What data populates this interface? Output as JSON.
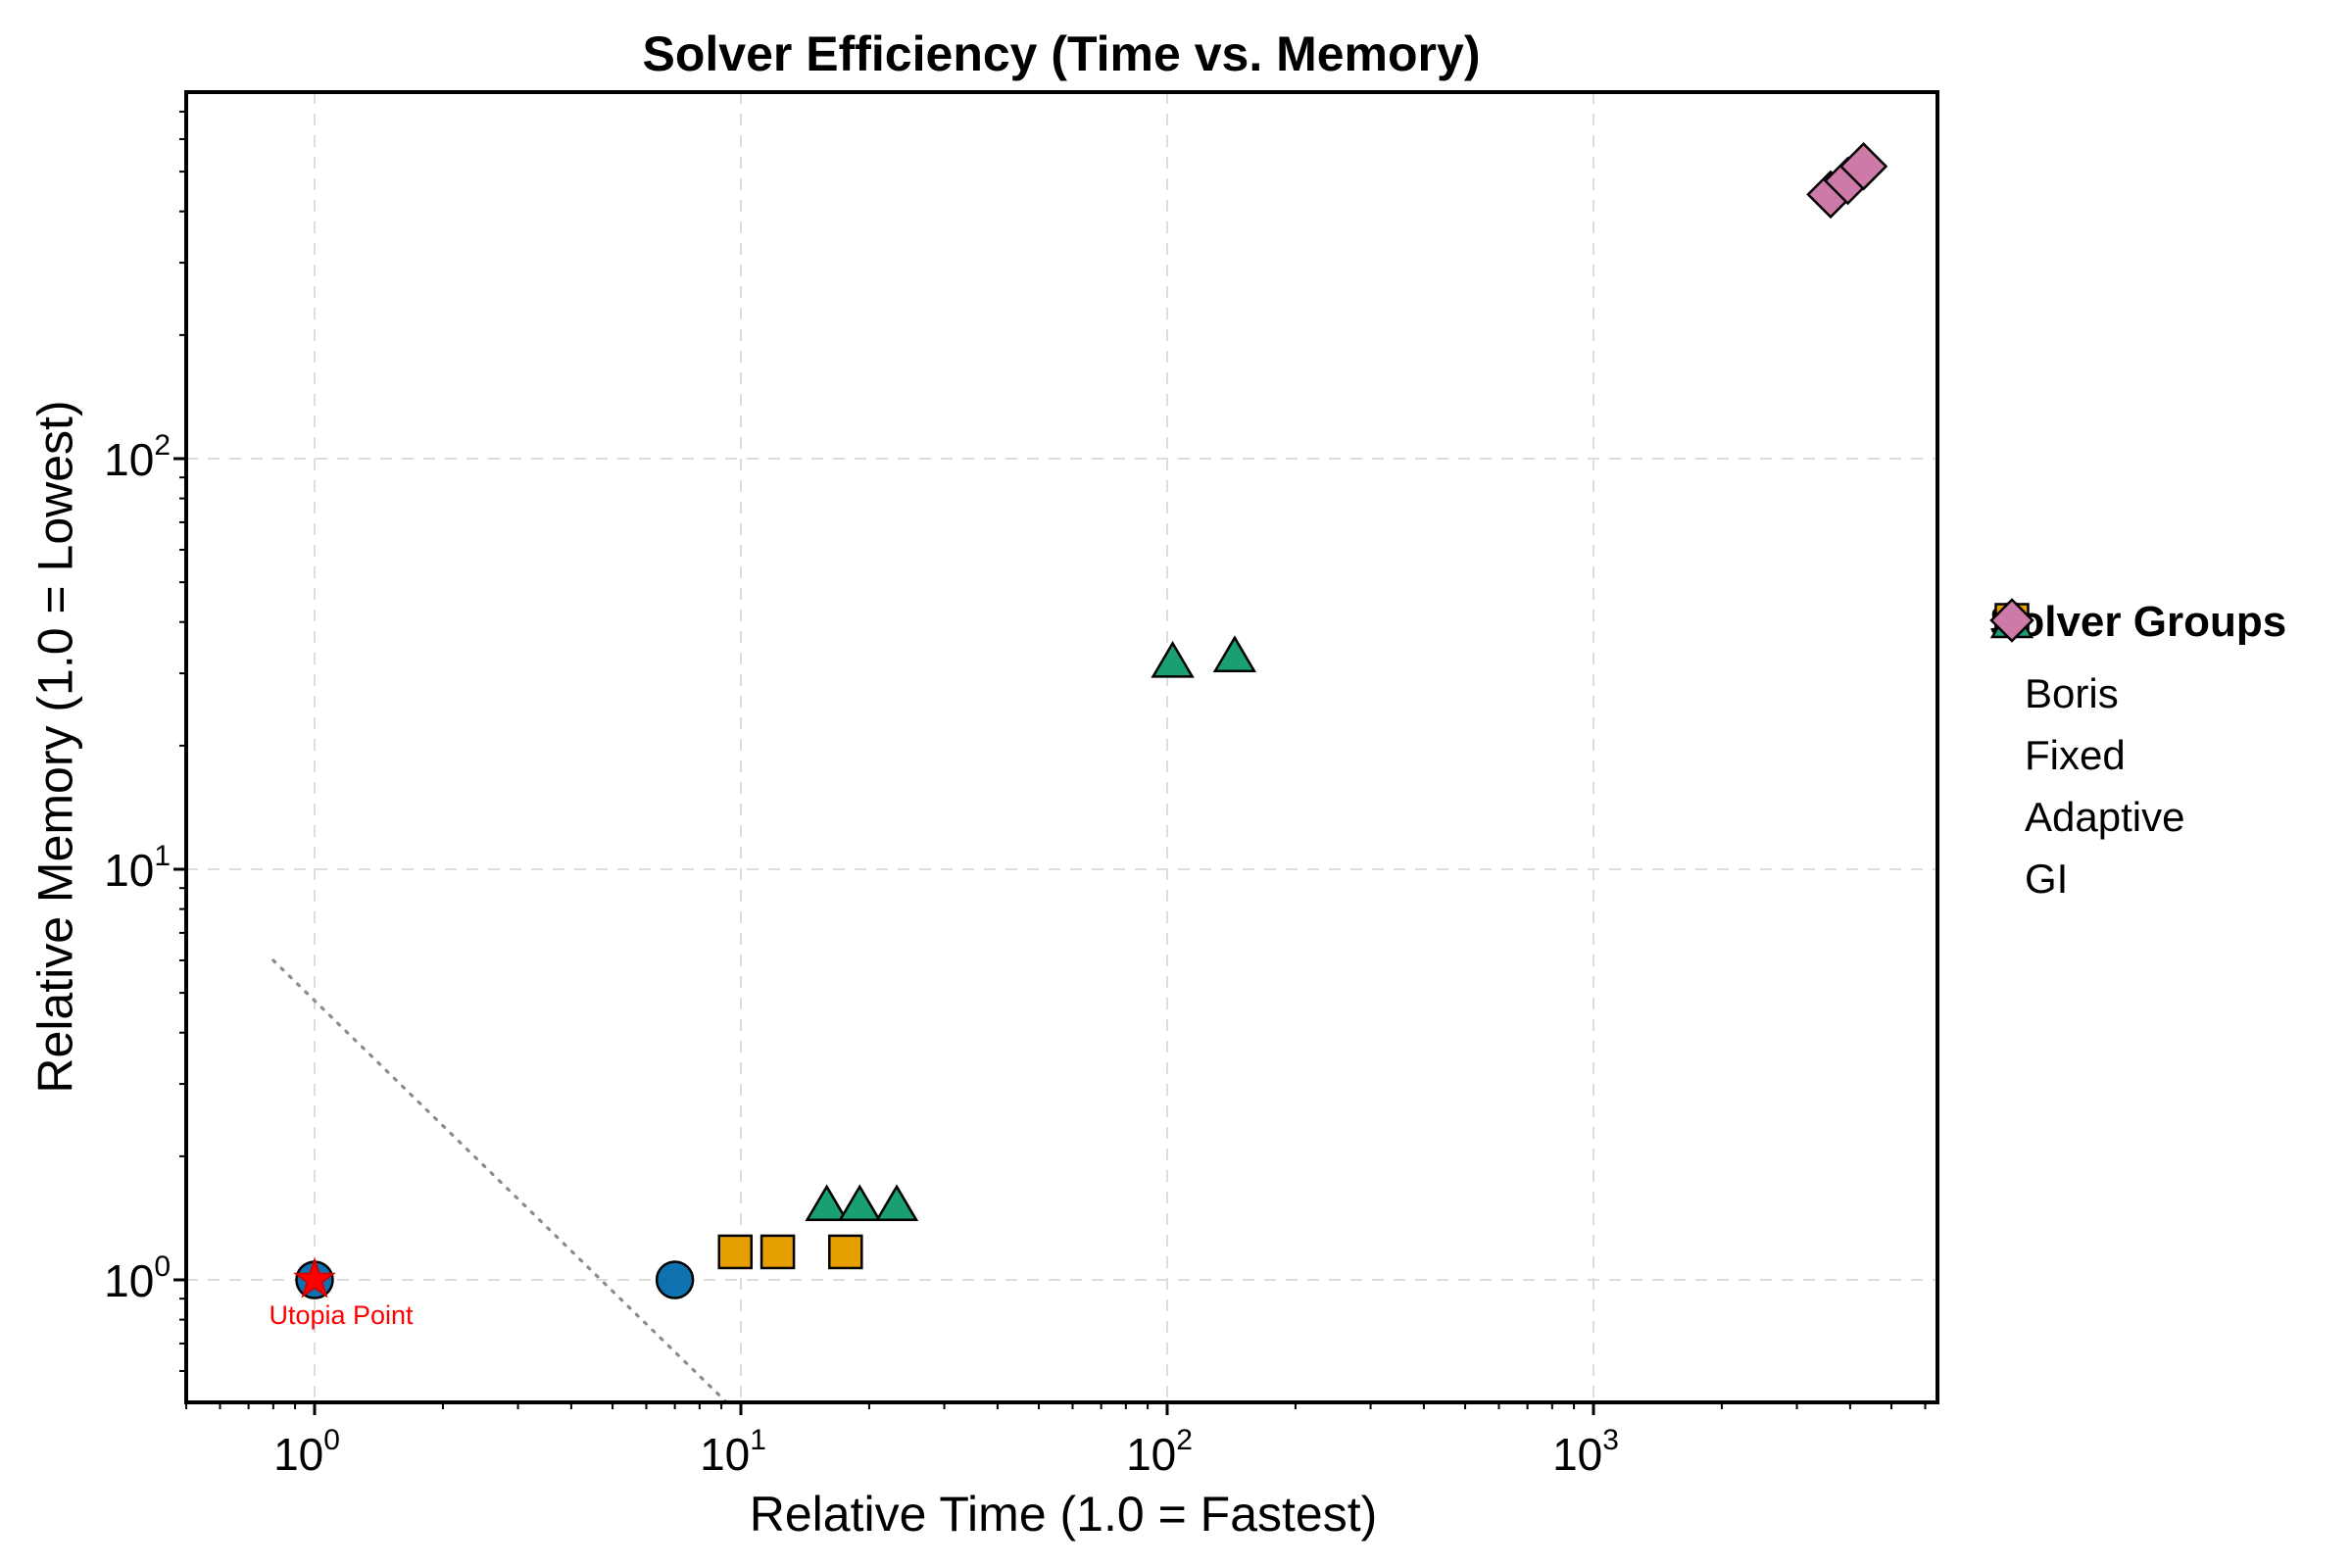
{
  "page": {
    "background": "#ffffff"
  },
  "chart_data": {
    "type": "scatter",
    "title": "Solver Efficiency (Time vs. Memory)",
    "xlabel": "Relative Time (1.0 = Fastest)",
    "ylabel": "Relative Memory (1.0 = Lowest)",
    "xscale": "log",
    "yscale": "log",
    "xlim": [
      0.5,
      6400
    ],
    "ylim": [
      0.5,
      780
    ],
    "grid": true,
    "grid_color": "#dcdcdc",
    "xticks": [
      {
        "value": 1,
        "base": "10",
        "exp": "0"
      },
      {
        "value": 10,
        "base": "10",
        "exp": "1"
      },
      {
        "value": 100,
        "base": "10",
        "exp": "2"
      },
      {
        "value": 1000,
        "base": "10",
        "exp": "3"
      }
    ],
    "yticks": [
      {
        "value": 1,
        "base": "10",
        "exp": "0"
      },
      {
        "value": 10,
        "base": "10",
        "exp": "1"
      },
      {
        "value": 100,
        "base": "10",
        "exp": "2"
      }
    ],
    "series": [
      {
        "name": "Boris",
        "marker": "circle",
        "color": "#0e72b0",
        "points": [
          [
            1.0,
            1.0
          ],
          [
            7.0,
            1.0
          ]
        ]
      },
      {
        "name": "Fixed",
        "marker": "square",
        "color": "#e69f00",
        "points": [
          [
            9.7,
            1.17
          ],
          [
            12.2,
            1.17
          ],
          [
            17.6,
            1.17
          ]
        ]
      },
      {
        "name": "Adaptive",
        "marker": "triangle",
        "color": "#1a9e74",
        "points": [
          [
            15.9,
            1.52
          ],
          [
            19.0,
            1.52
          ],
          [
            23.2,
            1.52
          ],
          [
            103,
            32
          ],
          [
            144,
            33
          ]
        ]
      },
      {
        "name": "GI",
        "marker": "diamond",
        "color": "#cd7aa8",
        "points": [
          [
            3600,
            440
          ],
          [
            3950,
            475
          ],
          [
            4300,
            515
          ]
        ]
      }
    ],
    "reference_line": {
      "style": "dotted",
      "color": "#8c8c8c",
      "points": [
        [
          0.8,
          6.0
        ],
        [
          9.7,
          0.48
        ]
      ]
    },
    "annotation": {
      "text": "Utopia Point",
      "x": 1.0,
      "y": 1.0,
      "color": "#ff0000",
      "marker": "star",
      "marker_color": "#ff0000"
    },
    "legend": {
      "title": "Solver Groups",
      "position": "right"
    }
  }
}
